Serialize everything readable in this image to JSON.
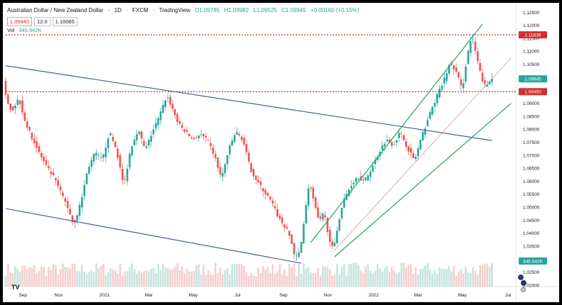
{
  "header": {
    "symbol": "Australian Dollar / New Zealand Dollar",
    "interval": "1D",
    "exchange": "FXCM",
    "source": "TradingView",
    "open": "O1.09785",
    "high": "H1.09982",
    "low": "L1.09525",
    "close": "C1.09945",
    "change": "+0.00160 (+0.15%)"
  },
  "price_boxes": {
    "bid": "1.09945",
    "spread": "12.0",
    "ask": "1.10065"
  },
  "volume": {
    "label": "Vol",
    "value": "345.642K"
  },
  "colors": {
    "up": "#26a69a",
    "down": "#ef5350",
    "channel": "#22a35a",
    "downtrend": "#44609a",
    "level": "#d32f2f"
  },
  "chart_data": {
    "type": "candlestick",
    "x_ticks": [
      "Sep",
      "Nov",
      "2021",
      "Mar",
      "May",
      "Jul",
      "Sep",
      "Nov",
      "2022",
      "Mar",
      "May",
      "Jul"
    ],
    "y_ticks": [
      "1.12500",
      "1.12000",
      "1.11500",
      "1.11000",
      "1.10500",
      "1.10000",
      "1.09500",
      "1.09000",
      "1.08500",
      "1.08000",
      "1.07500",
      "1.07000",
      "1.06500",
      "1.06000",
      "1.05500",
      "1.05000",
      "1.04500",
      "1.04000",
      "1.03500",
      "1.03000",
      "1.02500",
      "1.02000"
    ],
    "ylim": [
      1.0195,
      1.1265
    ],
    "price_path": [
      [
        0,
        1.094
      ],
      [
        3,
        1.087
      ],
      [
        6,
        1.092
      ],
      [
        9,
        1.082
      ],
      [
        12,
        1.076
      ],
      [
        15,
        1.07
      ],
      [
        18,
        1.065
      ],
      [
        21,
        1.061
      ],
      [
        24,
        1.055
      ],
      [
        27,
        1.049
      ],
      [
        29,
        1.043
      ],
      [
        32,
        1.052
      ],
      [
        35,
        1.065
      ],
      [
        38,
        1.071
      ],
      [
        41,
        1.068
      ],
      [
        44,
        1.079
      ],
      [
        47,
        1.072
      ],
      [
        50,
        1.058
      ],
      [
        53,
        1.073
      ],
      [
        56,
        1.08
      ],
      [
        59,
        1.072
      ],
      [
        62,
        1.079
      ],
      [
        65,
        1.085
      ],
      [
        68,
        1.093
      ],
      [
        70,
        1.089
      ],
      [
        73,
        1.082
      ],
      [
        76,
        1.079
      ],
      [
        79,
        1.076
      ],
      [
        82,
        1.078
      ],
      [
        85,
        1.076
      ],
      [
        88,
        1.07
      ],
      [
        91,
        1.061
      ],
      [
        94,
        1.072
      ],
      [
        97,
        1.079
      ],
      [
        100,
        1.076
      ],
      [
        103,
        1.065
      ],
      [
        106,
        1.06
      ],
      [
        109,
        1.056
      ],
      [
        112,
        1.052
      ],
      [
        115,
        1.046
      ],
      [
        118,
        1.042
      ],
      [
        120,
        1.038
      ],
      [
        122,
        1.03
      ],
      [
        124,
        1.033
      ],
      [
        126,
        1.048
      ],
      [
        128,
        1.06
      ],
      [
        130,
        1.051
      ],
      [
        132,
        1.044
      ],
      [
        134,
        1.048
      ],
      [
        136,
        1.039
      ],
      [
        138,
        1.033
      ],
      [
        140,
        1.044
      ],
      [
        142,
        1.052
      ],
      [
        145,
        1.058
      ],
      [
        148,
        1.062
      ],
      [
        151,
        1.06
      ],
      [
        154,
        1.065
      ],
      [
        157,
        1.071
      ],
      [
        160,
        1.076
      ],
      [
        163,
        1.074
      ],
      [
        166,
        1.079
      ],
      [
        169,
        1.073
      ],
      [
        172,
        1.068
      ],
      [
        175,
        1.077
      ],
      [
        178,
        1.085
      ],
      [
        181,
        1.092
      ],
      [
        184,
        1.098
      ],
      [
        187,
        1.106
      ],
      [
        190,
        1.101
      ],
      [
        192,
        1.095
      ],
      [
        194,
        1.108
      ],
      [
        196,
        1.116
      ],
      [
        198,
        1.108
      ],
      [
        200,
        1.1
      ],
      [
        202,
        1.096
      ],
      [
        204,
        1.0994
      ]
    ],
    "horizontal_levels": [
      {
        "price": 1.11636,
        "label": "1.11636",
        "style": "dotted"
      },
      {
        "price": 1.0945,
        "label": "1.09450",
        "style": "dotted"
      }
    ],
    "current_price": {
      "price": 1.09945,
      "label": "1.09945"
    },
    "volume_label": "345.642K",
    "trendlines": [
      {
        "name": "downtrend-channel-upper",
        "from": [
          0,
          1.1045
        ],
        "to": [
          204,
          1.0757
        ]
      },
      {
        "name": "downtrend-channel-lower",
        "from": [
          0,
          1.0495
        ],
        "to": [
          124,
          1.0285
        ]
      },
      {
        "name": "uptrend-channel-upper",
        "from": [
          128,
          1.0365
        ],
        "to": [
          200,
          1.1205
        ]
      },
      {
        "name": "uptrend-channel-lower",
        "from": [
          138,
          1.031
        ],
        "to": [
          212,
          1.09
        ]
      },
      {
        "name": "uptrend-channel-mid",
        "from": [
          138,
          1.0335
        ],
        "to": [
          212,
          1.1075
        ]
      }
    ]
  }
}
